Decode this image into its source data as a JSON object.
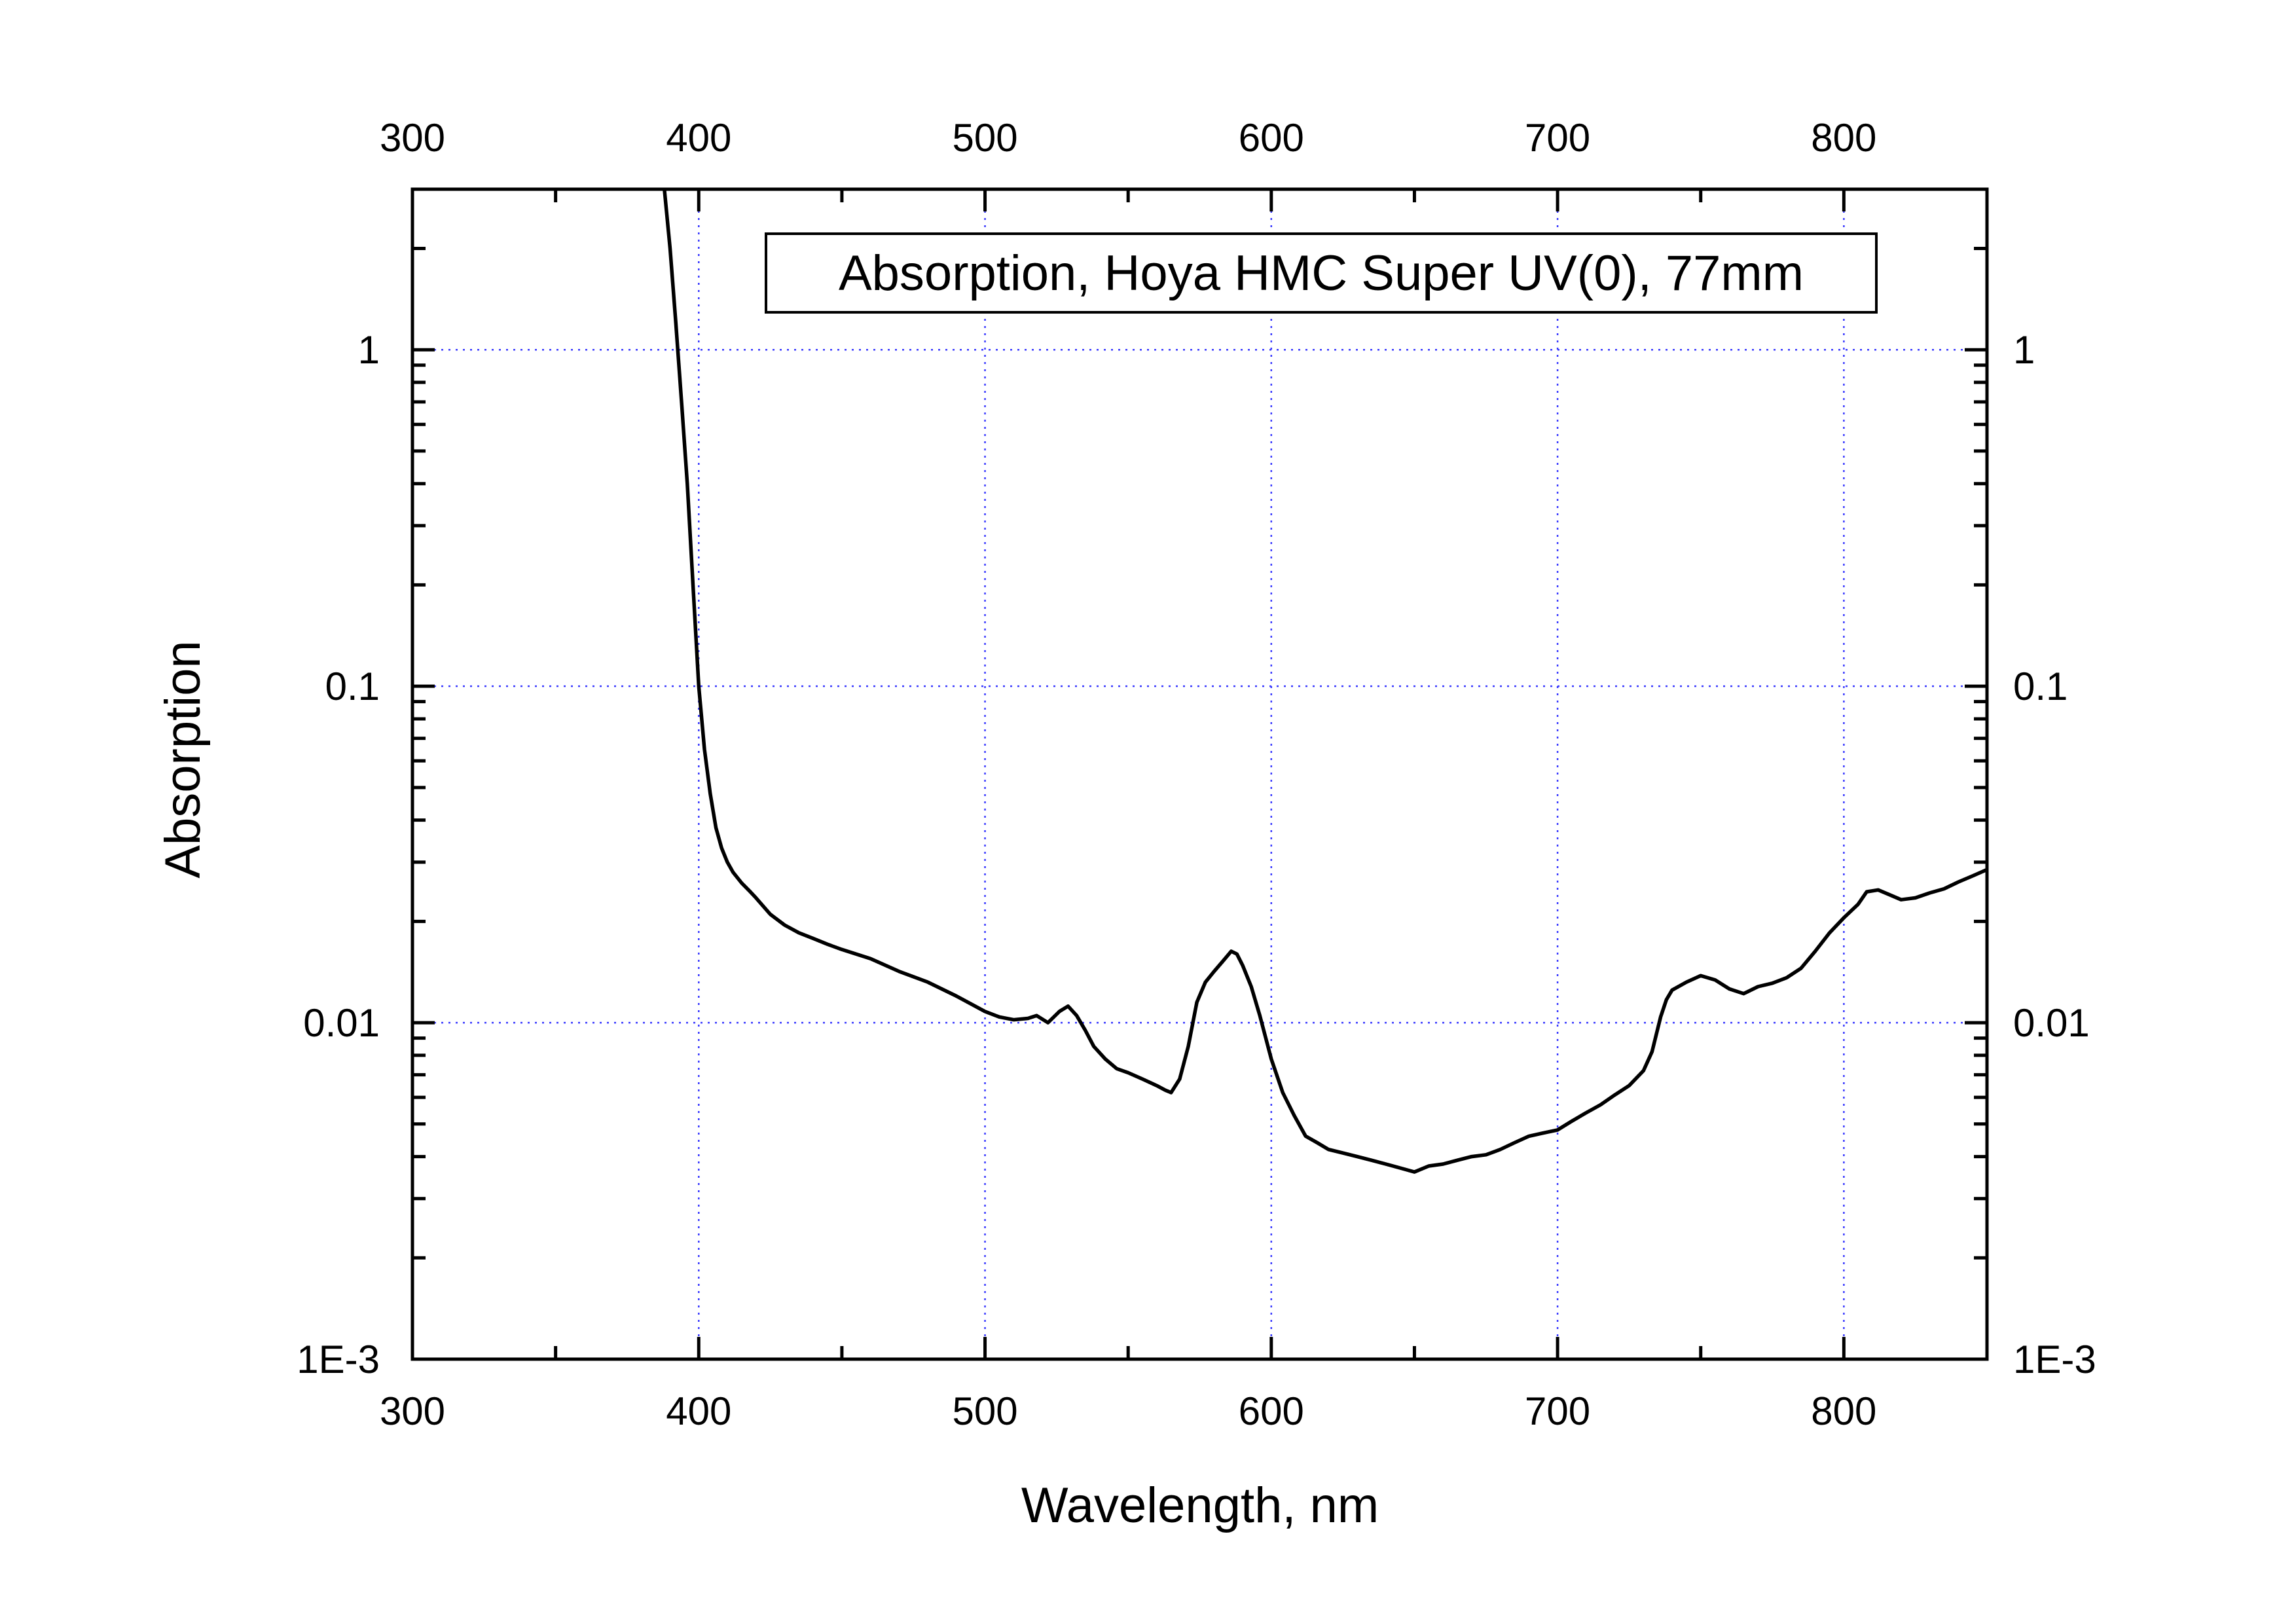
{
  "chart_data": {
    "type": "line",
    "title": "",
    "legend_text": "Absorption, Hoya HMC Super UV(0), 77mm",
    "legend_position": "top-right",
    "xlabel": "Wavelength, nm",
    "ylabel": "Absorption",
    "xlim": [
      300,
      850
    ],
    "ylim": [
      0.001,
      3
    ],
    "y_scale": "log",
    "grid": true,
    "x_ticks": [
      300,
      400,
      500,
      600,
      700,
      800
    ],
    "x_tick_labels": [
      "300",
      "400",
      "500",
      "600",
      "700",
      "800"
    ],
    "y_ticks": [
      0.001,
      0.01,
      0.1,
      1
    ],
    "y_tick_labels": [
      "1E-3",
      "0.01",
      "0.1",
      "1"
    ],
    "colors": {
      "line": "#000000",
      "grid": "#3a3aff",
      "axes": "#000000"
    },
    "series": [
      {
        "x": [
          388,
          390,
          392,
          394,
          396,
          398,
          400,
          402,
          404,
          406,
          408,
          410,
          412,
          415,
          418,
          420,
          425,
          430,
          435,
          440,
          445,
          450,
          460,
          470,
          480,
          490,
          500,
          505,
          510,
          515,
          518,
          522,
          526,
          529,
          532,
          535,
          538,
          542,
          546,
          550,
          555,
          560,
          563,
          565,
          568,
          571,
          574,
          577,
          580,
          583,
          586,
          588,
          590,
          593,
          596,
          600,
          604,
          608,
          612,
          616,
          620,
          625,
          630,
          635,
          640,
          645,
          650,
          655,
          660,
          665,
          670,
          675,
          680,
          685,
          690,
          695,
          700,
          705,
          710,
          715,
          720,
          725,
          730,
          733,
          736,
          738,
          740,
          745,
          750,
          755,
          760,
          765,
          770,
          775,
          780,
          785,
          790,
          795,
          800,
          805,
          808,
          812,
          816,
          820,
          825,
          830,
          835,
          840,
          845,
          850
        ],
        "y": [
          3.0,
          2.0,
          1.2,
          0.7,
          0.4,
          0.2,
          0.1,
          0.065,
          0.048,
          0.038,
          0.033,
          0.03,
          0.028,
          0.026,
          0.0245,
          0.0235,
          0.021,
          0.0195,
          0.0185,
          0.0178,
          0.0171,
          0.0165,
          0.0155,
          0.0142,
          0.0132,
          0.012,
          0.0108,
          0.0104,
          0.0102,
          0.0103,
          0.0105,
          0.01,
          0.0108,
          0.0112,
          0.0105,
          0.0095,
          0.0085,
          0.0078,
          0.0073,
          0.0071,
          0.0068,
          0.0065,
          0.0063,
          0.0062,
          0.0068,
          0.0085,
          0.0115,
          0.0132,
          0.0142,
          0.0152,
          0.0163,
          0.016,
          0.0148,
          0.0128,
          0.0105,
          0.0078,
          0.0062,
          0.0053,
          0.0046,
          0.0044,
          0.0042,
          0.0041,
          0.004,
          0.0039,
          0.0038,
          0.0037,
          0.0036,
          0.00375,
          0.0038,
          0.0039,
          0.004,
          0.00405,
          0.0042,
          0.0044,
          0.0046,
          0.0047,
          0.0048,
          0.0051,
          0.0054,
          0.0057,
          0.0061,
          0.0065,
          0.0072,
          0.0082,
          0.0104,
          0.0117,
          0.0125,
          0.0132,
          0.0138,
          0.0134,
          0.0126,
          0.0122,
          0.0128,
          0.0131,
          0.0136,
          0.0145,
          0.0163,
          0.0185,
          0.0205,
          0.0225,
          0.0245,
          0.0248,
          0.024,
          0.0232,
          0.0235,
          0.0243,
          0.025,
          0.0262,
          0.0273,
          0.0285
        ]
      }
    ]
  }
}
